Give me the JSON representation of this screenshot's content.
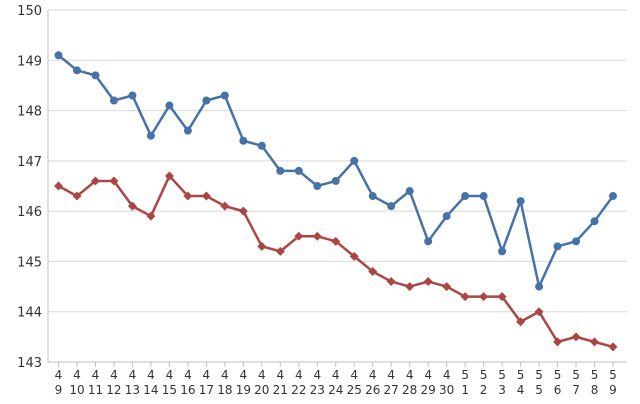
{
  "chart_data": {
    "type": "line",
    "categories": [
      [
        "4",
        "9"
      ],
      [
        "4",
        "10"
      ],
      [
        "4",
        "11"
      ],
      [
        "4",
        "12"
      ],
      [
        "4",
        "13"
      ],
      [
        "4",
        "14"
      ],
      [
        "4",
        "15"
      ],
      [
        "4",
        "16"
      ],
      [
        "4",
        "17"
      ],
      [
        "4",
        "18"
      ],
      [
        "4",
        "19"
      ],
      [
        "4",
        "20"
      ],
      [
        "4",
        "21"
      ],
      [
        "4",
        "22"
      ],
      [
        "4",
        "23"
      ],
      [
        "4",
        "24"
      ],
      [
        "4",
        "25"
      ],
      [
        "4",
        "26"
      ],
      [
        "4",
        "27"
      ],
      [
        "4",
        "28"
      ],
      [
        "4",
        "29"
      ],
      [
        "4",
        "30"
      ],
      [
        "5",
        "1"
      ],
      [
        "5",
        "2"
      ],
      [
        "5",
        "3"
      ],
      [
        "5",
        "4"
      ],
      [
        "5",
        "5"
      ],
      [
        "5",
        "6"
      ],
      [
        "5",
        "7"
      ],
      [
        "5",
        "8"
      ],
      [
        "5",
        "9"
      ]
    ],
    "ylim": [
      143,
      150
    ],
    "yticks": [
      143,
      144,
      145,
      146,
      147,
      148,
      149,
      150
    ],
    "grid": true,
    "series": [
      {
        "color": "#4572A7",
        "marker": "circle",
        "values": [
          149.1,
          148.8,
          148.7,
          148.2,
          148.3,
          147.5,
          148.1,
          147.6,
          148.2,
          148.3,
          147.4,
          147.3,
          146.8,
          146.8,
          146.5,
          146.6,
          147.0,
          146.3,
          146.1,
          146.4,
          145.4,
          145.9,
          146.3,
          146.3,
          145.2,
          146.2,
          144.5,
          145.3,
          145.4,
          145.8,
          146.3
        ]
      },
      {
        "color": "#AA4643",
        "marker": "diamond",
        "values": [
          146.5,
          146.3,
          146.6,
          146.6,
          146.1,
          145.9,
          146.7,
          146.3,
          146.3,
          146.1,
          146.0,
          145.3,
          145.2,
          145.5,
          145.5,
          145.4,
          145.1,
          144.8,
          144.6,
          144.5,
          144.6,
          144.5,
          144.3,
          144.3,
          144.3,
          143.8,
          144.0,
          143.4,
          143.5,
          143.4,
          143.3
        ]
      }
    ]
  }
}
